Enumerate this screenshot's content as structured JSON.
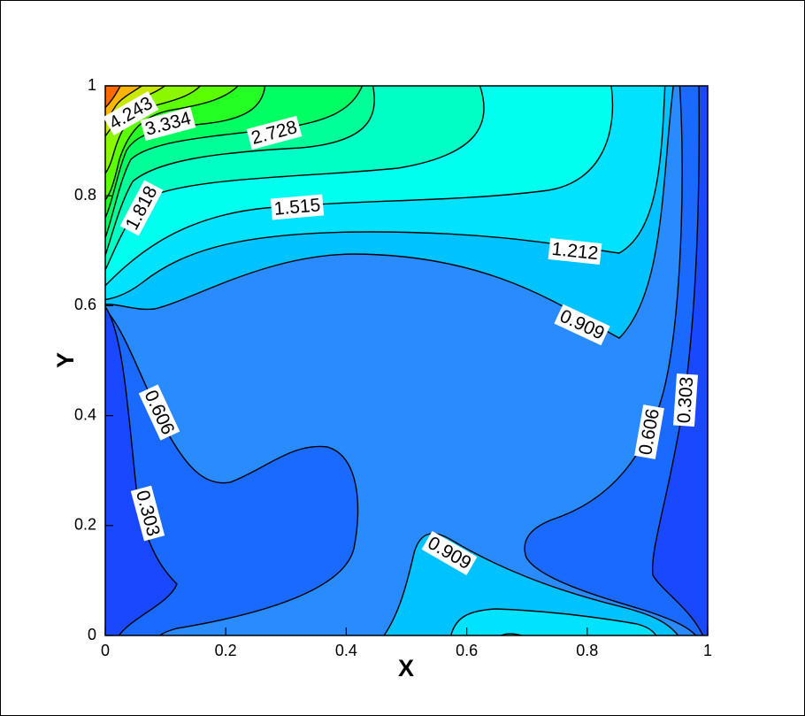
{
  "chart_data": {
    "type": "contour",
    "xlabel": "X",
    "ylabel": "Y",
    "xlim": [
      0,
      1
    ],
    "ylim": [
      0,
      1
    ],
    "xticks": [
      0,
      0.2,
      0.4,
      0.6,
      0.8,
      1
    ],
    "yticks": [
      0,
      0.2,
      0.4,
      0.6,
      0.8,
      1
    ],
    "levels": [
      0.303,
      0.606,
      0.909,
      1.212,
      1.515,
      1.818,
      2.728,
      3.334,
      4.243
    ]
  }
}
